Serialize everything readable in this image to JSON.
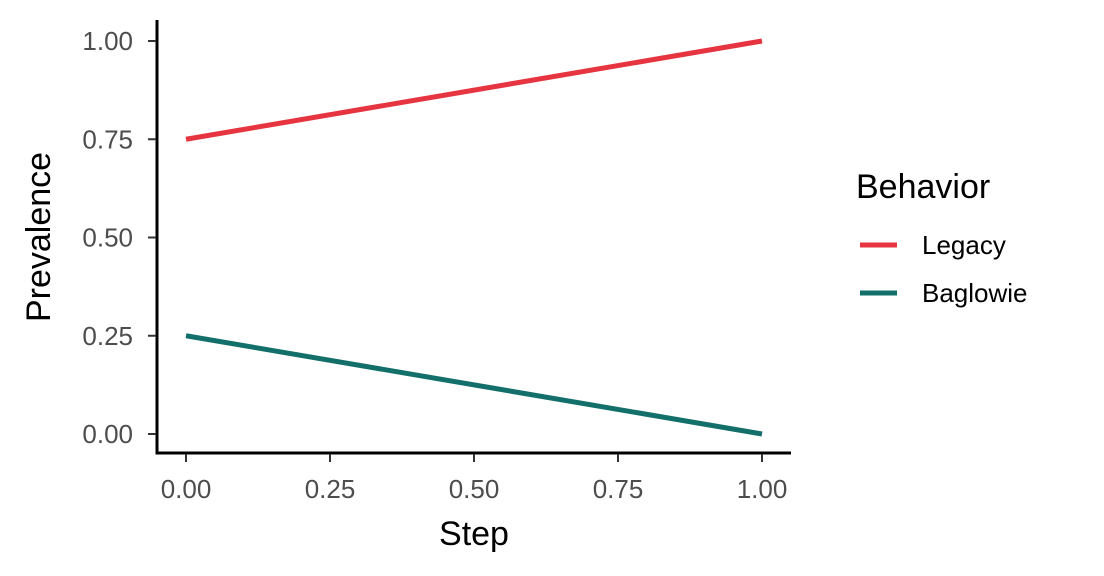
{
  "chart_data": {
    "type": "line",
    "xlabel": "Step",
    "ylabel": "Prevalence",
    "xlim": [
      0,
      1
    ],
    "ylim": [
      0,
      1
    ],
    "x_ticks": [
      "0.00",
      "0.25",
      "0.50",
      "0.75",
      "1.00"
    ],
    "y_ticks": [
      "0.00",
      "0.25",
      "0.50",
      "0.75",
      "1.00"
    ],
    "grid": false,
    "legend": {
      "title": "Behavior",
      "placement": "right"
    },
    "x": [
      0,
      1
    ],
    "series": [
      {
        "name": "Legacy",
        "values": [
          0.75,
          1.0
        ],
        "color": "#E63540"
      },
      {
        "name": "Baglowie",
        "values": [
          0.25,
          0.0
        ],
        "color": "#136F6A"
      }
    ]
  }
}
